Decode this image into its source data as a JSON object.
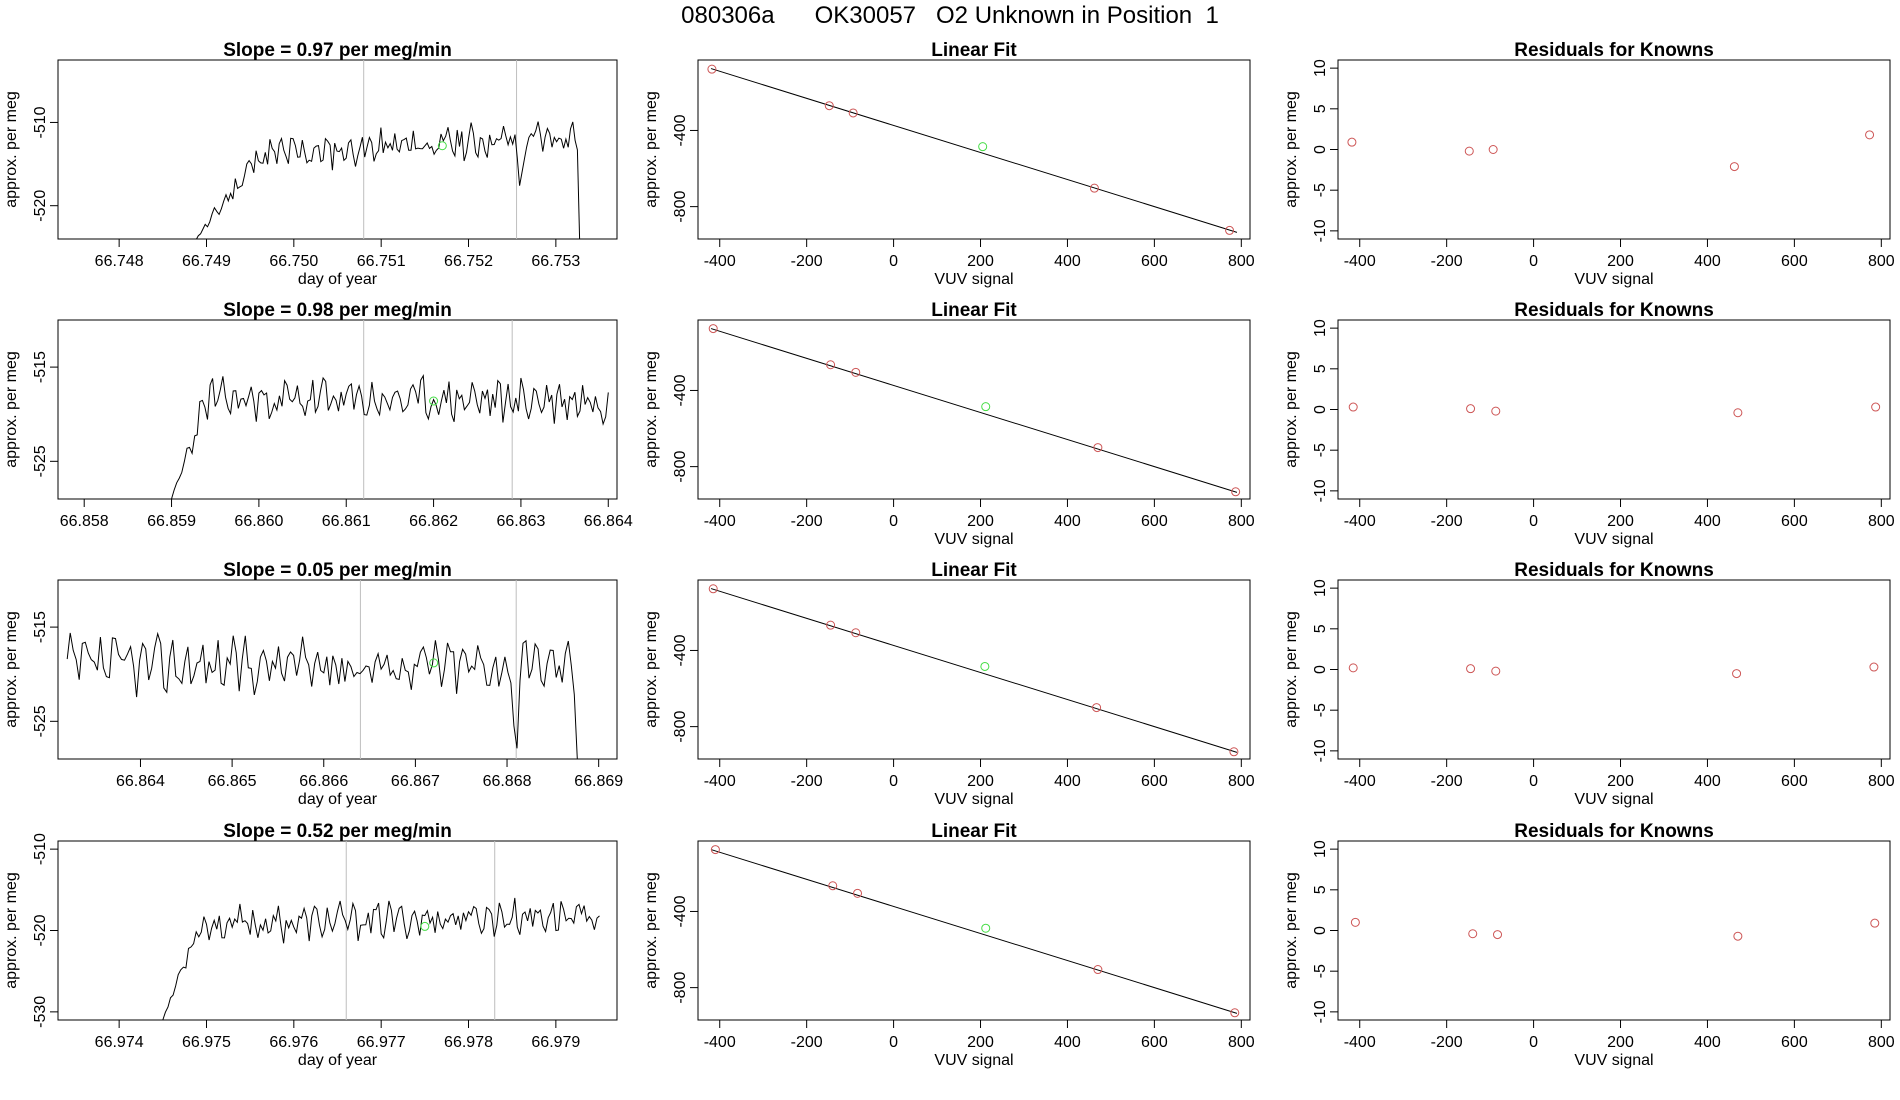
{
  "figure_title": "080306a      OK30057   O2 Unknown in Position  1",
  "colors": {
    "line": "#000000",
    "known": "#cd5555",
    "unknown": "#44dd44",
    "vline": "#bebebe",
    "axis": "#000000"
  },
  "chart_data": [
    {
      "type": "line",
      "row": 1,
      "col": 1,
      "title": "Slope =  0.97  per meg/min",
      "xlabel": "day of year",
      "ylabel": "approx. per meg",
      "xlim": [
        66.7473,
        66.7537
      ],
      "ylim": [
        -524,
        -502.5
      ],
      "xticks": [
        66.748,
        66.749,
        66.75,
        66.751,
        66.752,
        66.753
      ],
      "xtick_labels": [
        "66.748",
        "66.749",
        "66.750",
        "66.751",
        "66.752",
        "66.753"
      ],
      "yticks": [
        -520,
        -510
      ],
      "ytick_labels": [
        "-520",
        "-510"
      ],
      "vlines": [
        66.7508,
        66.75255
      ],
      "trace": {
        "x_start": 66.7488,
        "x_end": 66.7533,
        "base": -514.5,
        "trend": 3,
        "amp": 1.6,
        "seed": 11,
        "dips": [
          {
            "x": 66.7526,
            "depth": 5
          }
        ],
        "ramp_in": [
          -525,
          0.0008
        ],
        "ramp_out": -525
      },
      "unknown_point": {
        "x": 66.7517,
        "y": -512.8
      }
    },
    {
      "type": "scatter",
      "row": 1,
      "col": 2,
      "title": "Linear Fit",
      "xlabel": "VUV signal",
      "ylabel": "approx. per meg",
      "xlim": [
        -450,
        820
      ],
      "ylim": [
        -970,
        -30
      ],
      "xticks": [
        -400,
        -200,
        0,
        200,
        400,
        600,
        800
      ],
      "xtick_labels": [
        "-400",
        "-200",
        "0",
        "200",
        "400",
        "600",
        "800"
      ],
      "yticks": [
        -800,
        -400
      ],
      "ytick_labels": [
        "-800",
        "-400"
      ],
      "fit_line": [
        [
          -420,
          -75
        ],
        [
          790,
          -935
        ]
      ],
      "known_points": [
        [
          -418,
          -78
        ],
        [
          -148,
          -270
        ],
        [
          -93,
          -308
        ],
        [
          462,
          -703
        ],
        [
          773,
          -925
        ]
      ],
      "unknown_point": [
        205,
        -485
      ]
    },
    {
      "type": "scatter",
      "row": 1,
      "col": 3,
      "title": "Residuals for Knowns",
      "xlabel": "VUV signal",
      "ylabel": "approx. per meg",
      "xlim": [
        -450,
        820
      ],
      "ylim": [
        -11,
        11
      ],
      "xticks": [
        -400,
        -200,
        0,
        200,
        400,
        600,
        800
      ],
      "xtick_labels": [
        "-400",
        "-200",
        "0",
        "200",
        "400",
        "600",
        "800"
      ],
      "yticks": [
        -10,
        -5,
        0,
        5,
        10
      ],
      "ytick_labels": [
        "-10",
        "-5",
        "0",
        "5",
        "10"
      ],
      "known_points": [
        [
          -418,
          0.9
        ],
        [
          -148,
          -0.2
        ],
        [
          -93,
          0.0
        ],
        [
          462,
          -2.1
        ],
        [
          773,
          1.8
        ]
      ]
    },
    {
      "type": "line",
      "row": 2,
      "col": 1,
      "title": "Slope =  0.98  per meg/min",
      "xlabel": "",
      "ylabel": "approx. per meg",
      "xlim": [
        66.8577,
        66.8641
      ],
      "ylim": [
        -529,
        -510
      ],
      "xticks": [
        66.858,
        66.859,
        66.86,
        66.861,
        66.862,
        66.863,
        66.864
      ],
      "xtick_labels": [
        "66.858",
        "66.859",
        "66.860",
        "66.861",
        "66.862",
        "66.863",
        "66.864"
      ],
      "yticks": [
        -525,
        -515
      ],
      "ytick_labels": [
        "-525",
        "-515"
      ],
      "vlines": [
        66.8612,
        66.8629
      ],
      "trace": {
        "x_start": 66.859,
        "x_end": 66.864,
        "base": -518.5,
        "trend": 0,
        "amp": 1.8,
        "seed": 23,
        "dips": [],
        "ramp_in": [
          -529,
          0.0004
        ],
        "ramp_out": null
      },
      "unknown_point": {
        "x": 66.862,
        "y": -518.6
      }
    },
    {
      "type": "scatter",
      "row": 2,
      "col": 2,
      "title": "Linear Fit",
      "xlabel": "VUV signal",
      "ylabel": "approx. per meg",
      "xlim": [
        -450,
        820
      ],
      "ylim": [
        -970,
        -30
      ],
      "xticks": [
        -400,
        -200,
        0,
        200,
        400,
        600,
        800
      ],
      "xtick_labels": [
        "-400",
        "-200",
        "0",
        "200",
        "400",
        "600",
        "800"
      ],
      "yticks": [
        -800,
        -400
      ],
      "ytick_labels": [
        "-800",
        "-400"
      ],
      "fit_line": [
        [
          -420,
          -75
        ],
        [
          790,
          -935
        ]
      ],
      "known_points": [
        [
          -415,
          -75
        ],
        [
          -145,
          -265
        ],
        [
          -87,
          -305
        ],
        [
          470,
          -700
        ],
        [
          787,
          -932
        ]
      ],
      "unknown_point": [
        212,
        -485
      ]
    },
    {
      "type": "scatter",
      "row": 2,
      "col": 3,
      "title": "Residuals for Knowns",
      "xlabel": "VUV signal",
      "ylabel": "approx. per meg",
      "xlim": [
        -450,
        820
      ],
      "ylim": [
        -11,
        11
      ],
      "xticks": [
        -400,
        -200,
        0,
        200,
        400,
        600,
        800
      ],
      "xtick_labels": [
        "-400",
        "-200",
        "0",
        "200",
        "400",
        "600",
        "800"
      ],
      "yticks": [
        -10,
        -5,
        0,
        5,
        10
      ],
      "ytick_labels": [
        "-10",
        "-5",
        "0",
        "5",
        "10"
      ],
      "known_points": [
        [
          -415,
          0.3
        ],
        [
          -145,
          0.1
        ],
        [
          -87,
          -0.2
        ],
        [
          470,
          -0.4
        ],
        [
          787,
          0.3
        ]
      ]
    },
    {
      "type": "line",
      "row": 3,
      "col": 1,
      "title": "Slope =  0.05  per meg/min",
      "xlabel": "day of year",
      "ylabel": "approx. per meg",
      "xlim": [
        66.8631,
        66.8692
      ],
      "ylim": [
        -529,
        -510
      ],
      "xticks": [
        66.864,
        66.865,
        66.866,
        66.867,
        66.868,
        66.869
      ],
      "xtick_labels": [
        "66.864",
        "66.865",
        "66.866",
        "66.867",
        "66.868",
        "66.869"
      ],
      "yticks": [
        -525,
        -515
      ],
      "ytick_labels": [
        "-525",
        "-515"
      ],
      "vlines": [
        66.8664,
        66.8681
      ],
      "trace": {
        "x_start": 66.8632,
        "x_end": 66.8688,
        "base": -519,
        "trend": 0,
        "amp": 2.2,
        "seed": 37,
        "dips": [
          {
            "x": 66.8681,
            "depth": 7
          }
        ],
        "ramp_in": null,
        "ramp_out": -529
      },
      "unknown_point": {
        "x": 66.8672,
        "y": -518.8
      }
    },
    {
      "type": "scatter",
      "row": 3,
      "col": 2,
      "title": "Linear Fit",
      "xlabel": "VUV signal",
      "ylabel": "approx. per meg",
      "xlim": [
        -450,
        820
      ],
      "ylim": [
        -970,
        -30
      ],
      "xticks": [
        -400,
        -200,
        0,
        200,
        400,
        600,
        800
      ],
      "xtick_labels": [
        "-400",
        "-200",
        "0",
        "200",
        "400",
        "600",
        "800"
      ],
      "yticks": [
        -800,
        -400
      ],
      "ytick_labels": [
        "-800",
        "-400"
      ],
      "fit_line": [
        [
          -420,
          -75
        ],
        [
          790,
          -935
        ]
      ],
      "known_points": [
        [
          -415,
          -76
        ],
        [
          -145,
          -267
        ],
        [
          -87,
          -307
        ],
        [
          467,
          -700
        ],
        [
          783,
          -932
        ]
      ],
      "unknown_point": [
        210,
        -484
      ]
    },
    {
      "type": "scatter",
      "row": 3,
      "col": 3,
      "title": "Residuals for Knowns",
      "xlabel": "VUV signal",
      "ylabel": "approx. per meg",
      "xlim": [
        -450,
        820
      ],
      "ylim": [
        -11,
        11
      ],
      "xticks": [
        -400,
        -200,
        0,
        200,
        400,
        600,
        800
      ],
      "xtick_labels": [
        "-400",
        "-200",
        "0",
        "200",
        "400",
        "600",
        "800"
      ],
      "yticks": [
        -10,
        -5,
        0,
        5,
        10
      ],
      "ytick_labels": [
        "-10",
        "-5",
        "0",
        "5",
        "10"
      ],
      "known_points": [
        [
          -415,
          0.2
        ],
        [
          -145,
          0.1
        ],
        [
          -87,
          -0.2
        ],
        [
          467,
          -0.5
        ],
        [
          783,
          0.3
        ]
      ]
    },
    {
      "type": "line",
      "row": 4,
      "col": 1,
      "title": "Slope =  0.52  per meg/min",
      "xlabel": "day of year",
      "ylabel": "approx. per meg",
      "xlim": [
        66.9733,
        66.9797
      ],
      "ylim": [
        -531,
        -509
      ],
      "xticks": [
        66.974,
        66.975,
        66.976,
        66.977,
        66.978,
        66.979
      ],
      "xtick_labels": [
        "66.974",
        "66.975",
        "66.976",
        "66.977",
        "66.978",
        "66.979"
      ],
      "yticks": [
        -530,
        -520,
        -510
      ],
      "ytick_labels": [
        "-530",
        "-520",
        "-510"
      ],
      "vlines": [
        66.9766,
        66.9783
      ],
      "trace": {
        "x_start": 66.9745,
        "x_end": 66.9795,
        "base": -519.5,
        "trend": 1.5,
        "amp": 1.6,
        "seed": 53,
        "dips": [],
        "ramp_in": [
          -531,
          0.0004
        ],
        "ramp_out": null
      },
      "unknown_point": {
        "x": 66.9775,
        "y": -519.5
      }
    },
    {
      "type": "scatter",
      "row": 4,
      "col": 2,
      "title": "Linear Fit",
      "xlabel": "VUV signal",
      "ylabel": "approx. per meg",
      "xlim": [
        -450,
        820
      ],
      "ylim": [
        -970,
        -30
      ],
      "xticks": [
        -400,
        -200,
        0,
        200,
        400,
        600,
        800
      ],
      "xtick_labels": [
        "-400",
        "-200",
        "0",
        "200",
        "400",
        "600",
        "800"
      ],
      "yticks": [
        -800,
        -400
      ],
      "ytick_labels": [
        "-800",
        "-400"
      ],
      "fit_line": [
        [
          -420,
          -75
        ],
        [
          790,
          -935
        ]
      ],
      "known_points": [
        [
          -410,
          -75
        ],
        [
          -140,
          -265
        ],
        [
          -83,
          -305
        ],
        [
          470,
          -705
        ],
        [
          785,
          -932
        ]
      ],
      "unknown_point": [
        212,
        -488
      ]
    },
    {
      "type": "scatter",
      "row": 4,
      "col": 3,
      "title": "Residuals for Knowns",
      "xlabel": "VUV signal",
      "ylabel": "approx. per meg",
      "xlim": [
        -450,
        820
      ],
      "ylim": [
        -11,
        11
      ],
      "xticks": [
        -400,
        -200,
        0,
        200,
        400,
        600,
        800
      ],
      "xtick_labels": [
        "-400",
        "-200",
        "0",
        "200",
        "400",
        "600",
        "800"
      ],
      "yticks": [
        -10,
        -5,
        0,
        5,
        10
      ],
      "ytick_labels": [
        "-10",
        "-5",
        "0",
        "5",
        "10"
      ],
      "known_points": [
        [
          -410,
          1.0
        ],
        [
          -140,
          -0.4
        ],
        [
          -83,
          -0.5
        ],
        [
          470,
          -0.7
        ],
        [
          785,
          0.9
        ]
      ]
    }
  ]
}
